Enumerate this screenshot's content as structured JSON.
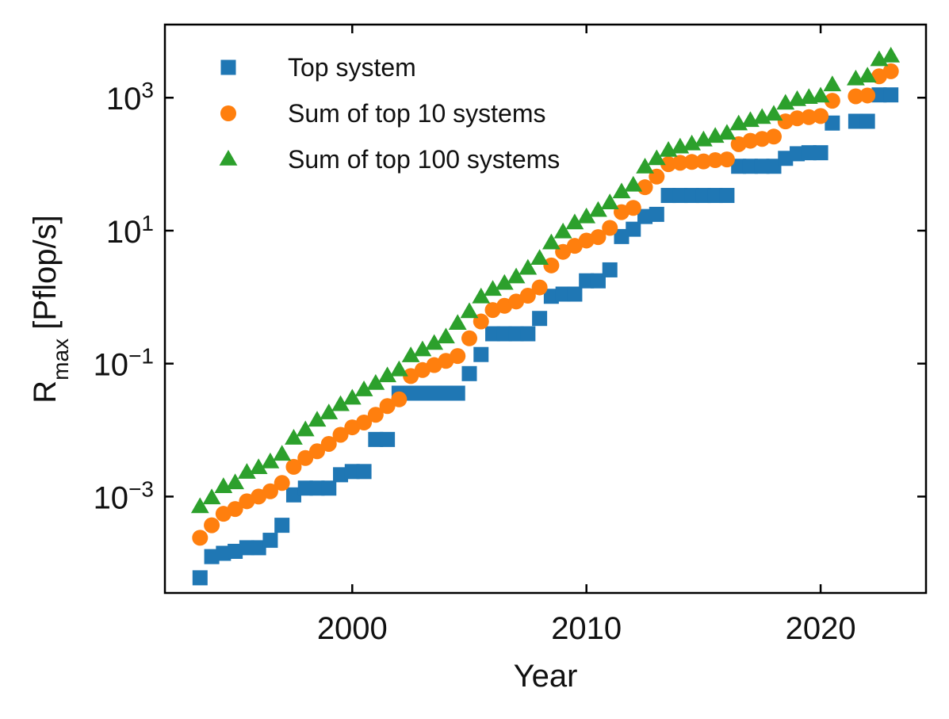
{
  "chart_data": {
    "type": "scatter",
    "xlabel": "Year",
    "ylabel": {
      "main": "R",
      "sub": "max",
      "rest": " [Pflop/s]"
    },
    "xlim": [
      1992,
      2024.5
    ],
    "ylim_log10": [
      -4.45,
      4.1
    ],
    "yscale": "log",
    "grid": false,
    "legend_position": "top-left",
    "x_ticks": [
      {
        "value": 2000,
        "label": "2000"
      },
      {
        "value": 2010,
        "label": "2010"
      },
      {
        "value": 2020,
        "label": "2020"
      }
    ],
    "y_ticks": [
      {
        "exp": -3,
        "base": "10",
        "sup": "−3"
      },
      {
        "exp": -1,
        "base": "10",
        "sup": "−1"
      },
      {
        "exp": 1,
        "base": "10",
        "sup": "1"
      },
      {
        "exp": 3,
        "base": "10",
        "sup": "3"
      }
    ],
    "series": [
      {
        "name": "Top system",
        "marker": "square",
        "color": "#1f77b4",
        "points": [
          [
            1993.5,
            6e-05
          ],
          [
            1994.0,
            0.000125
          ],
          [
            1994.5,
            0.00014
          ],
          [
            1995.0,
            0.00015
          ],
          [
            1995.5,
            0.00017
          ],
          [
            1996.0,
            0.00017
          ],
          [
            1996.5,
            0.00022
          ],
          [
            1997.0,
            0.00037
          ],
          [
            1997.5,
            0.00106
          ],
          [
            1998.0,
            0.00134
          ],
          [
            1998.5,
            0.00134
          ],
          [
            1999.0,
            0.00134
          ],
          [
            1999.5,
            0.00213
          ],
          [
            2000.0,
            0.00238
          ],
          [
            2000.5,
            0.00238
          ],
          [
            2001.0,
            0.00723
          ],
          [
            2001.5,
            0.00723
          ],
          [
            2002.0,
            0.0359
          ],
          [
            2002.5,
            0.0359
          ],
          [
            2003.0,
            0.0359
          ],
          [
            2003.5,
            0.0359
          ],
          [
            2004.0,
            0.0359
          ],
          [
            2004.5,
            0.0359
          ],
          [
            2005.0,
            0.0707
          ],
          [
            2005.5,
            0.137
          ],
          [
            2006.0,
            0.281
          ],
          [
            2006.5,
            0.281
          ],
          [
            2007.0,
            0.281
          ],
          [
            2007.5,
            0.281
          ],
          [
            2008.0,
            0.478
          ],
          [
            2008.5,
            1.03
          ],
          [
            2009.0,
            1.11
          ],
          [
            2009.5,
            1.11
          ],
          [
            2010.0,
            1.76
          ],
          [
            2010.5,
            1.76
          ],
          [
            2011.0,
            2.57
          ],
          [
            2011.5,
            8.16
          ],
          [
            2012.0,
            10.51
          ],
          [
            2012.5,
            16.32
          ],
          [
            2013.0,
            17.59
          ],
          [
            2013.5,
            33.86
          ],
          [
            2014.0,
            33.86
          ],
          [
            2014.5,
            33.86
          ],
          [
            2015.0,
            33.86
          ],
          [
            2015.5,
            33.86
          ],
          [
            2016.0,
            33.86
          ],
          [
            2016.5,
            93.01
          ],
          [
            2017.0,
            93.01
          ],
          [
            2017.5,
            93.01
          ],
          [
            2018.0,
            93.01
          ],
          [
            2018.5,
            122.3
          ],
          [
            2019.0,
            143.5
          ],
          [
            2019.5,
            148.6
          ],
          [
            2020.0,
            148.6
          ],
          [
            2020.5,
            415.5
          ],
          [
            2021.5,
            442.0
          ],
          [
            2022.0,
            442.0
          ],
          [
            2022.5,
            1102.0
          ],
          [
            2023.0,
            1102.0
          ]
        ]
      },
      {
        "name": "Sum of top 10 systems",
        "marker": "circle",
        "color": "#ff7f0e",
        "points": [
          [
            1993.5,
            0.00024
          ],
          [
            1994.0,
            0.00037
          ],
          [
            1994.5,
            0.00055
          ],
          [
            1995.0,
            0.00065
          ],
          [
            1995.5,
            0.00085
          ],
          [
            1996.0,
            0.001
          ],
          [
            1996.5,
            0.0012
          ],
          [
            1997.0,
            0.0016
          ],
          [
            1997.5,
            0.0028
          ],
          [
            1998.0,
            0.0038
          ],
          [
            1998.5,
            0.0048
          ],
          [
            1999.0,
            0.0062
          ],
          [
            1999.5,
            0.0085
          ],
          [
            2000.0,
            0.011
          ],
          [
            2000.5,
            0.013
          ],
          [
            2001.0,
            0.017
          ],
          [
            2001.5,
            0.023
          ],
          [
            2002.0,
            0.029
          ],
          [
            2002.5,
            0.065
          ],
          [
            2003.0,
            0.08
          ],
          [
            2003.5,
            0.095
          ],
          [
            2004.0,
            0.11
          ],
          [
            2004.5,
            0.13
          ],
          [
            2005.0,
            0.24
          ],
          [
            2005.5,
            0.43
          ],
          [
            2006.0,
            0.64
          ],
          [
            2006.5,
            0.74
          ],
          [
            2007.0,
            0.86
          ],
          [
            2007.5,
            1.05
          ],
          [
            2008.0,
            1.4
          ],
          [
            2008.5,
            3.0
          ],
          [
            2009.0,
            4.8
          ],
          [
            2009.5,
            5.9
          ],
          [
            2010.0,
            7.1
          ],
          [
            2010.5,
            8.0
          ],
          [
            2011.0,
            11.0
          ],
          [
            2011.5,
            19.0
          ],
          [
            2012.0,
            22.0
          ],
          [
            2012.5,
            45.0
          ],
          [
            2013.0,
            65.0
          ],
          [
            2013.5,
            100.0
          ],
          [
            2014.0,
            105.0
          ],
          [
            2014.5,
            108.0
          ],
          [
            2015.0,
            110.0
          ],
          [
            2015.5,
            115.0
          ],
          [
            2016.0,
            118.0
          ],
          [
            2016.5,
            200.0
          ],
          [
            2017.0,
            225.0
          ],
          [
            2017.5,
            240.0
          ],
          [
            2018.0,
            260.0
          ],
          [
            2018.5,
            440.0
          ],
          [
            2019.0,
            490.0
          ],
          [
            2019.5,
            510.0
          ],
          [
            2020.0,
            530.0
          ],
          [
            2020.5,
            900.0
          ],
          [
            2021.5,
            1050.0
          ],
          [
            2022.0,
            1080.0
          ],
          [
            2022.5,
            2100.0
          ],
          [
            2023.0,
            2500.0
          ]
        ]
      },
      {
        "name": "Sum of top 100 systems",
        "marker": "triangle",
        "color": "#2ca02c",
        "points": [
          [
            1993.5,
            0.0007
          ],
          [
            1994.0,
            0.00095
          ],
          [
            1994.5,
            0.0014
          ],
          [
            1995.0,
            0.0016
          ],
          [
            1995.5,
            0.0023
          ],
          [
            1996.0,
            0.0027
          ],
          [
            1996.5,
            0.0033
          ],
          [
            1997.0,
            0.0043
          ],
          [
            1997.5,
            0.0075
          ],
          [
            1998.0,
            0.01
          ],
          [
            1998.5,
            0.014
          ],
          [
            1999.0,
            0.018
          ],
          [
            1999.5,
            0.024
          ],
          [
            2000.0,
            0.03
          ],
          [
            2000.5,
            0.04
          ],
          [
            2001.0,
            0.05
          ],
          [
            2001.5,
            0.065
          ],
          [
            2002.0,
            0.08
          ],
          [
            2002.5,
            0.13
          ],
          [
            2003.0,
            0.16
          ],
          [
            2003.5,
            0.2
          ],
          [
            2004.0,
            0.25
          ],
          [
            2004.5,
            0.4
          ],
          [
            2005.0,
            0.6
          ],
          [
            2005.5,
            1.0
          ],
          [
            2006.0,
            1.3
          ],
          [
            2006.5,
            1.6
          ],
          [
            2007.0,
            2.0
          ],
          [
            2007.5,
            2.7
          ],
          [
            2008.0,
            3.8
          ],
          [
            2008.5,
            6.5
          ],
          [
            2009.0,
            9.5
          ],
          [
            2009.5,
            13.0
          ],
          [
            2010.0,
            16.0
          ],
          [
            2010.5,
            20.0
          ],
          [
            2011.0,
            26.0
          ],
          [
            2011.5,
            38.0
          ],
          [
            2012.0,
            48.0
          ],
          [
            2012.5,
            90.0
          ],
          [
            2013.0,
            120.0
          ],
          [
            2013.5,
            160.0
          ],
          [
            2014.0,
            180.0
          ],
          [
            2014.5,
            200.0
          ],
          [
            2015.0,
            230.0
          ],
          [
            2015.5,
            260.0
          ],
          [
            2016.0,
            290.0
          ],
          [
            2016.5,
            400.0
          ],
          [
            2017.0,
            450.0
          ],
          [
            2017.5,
            500.0
          ],
          [
            2018.0,
            560.0
          ],
          [
            2018.5,
            820.0
          ],
          [
            2019.0,
            930.0
          ],
          [
            2019.5,
            1000.0
          ],
          [
            2020.0,
            1050.0
          ],
          [
            2020.5,
            1550.0
          ],
          [
            2021.5,
            1900.0
          ],
          [
            2022.0,
            2100.0
          ],
          [
            2022.5,
            3700.0
          ],
          [
            2023.0,
            4200.0
          ]
        ]
      }
    ]
  }
}
